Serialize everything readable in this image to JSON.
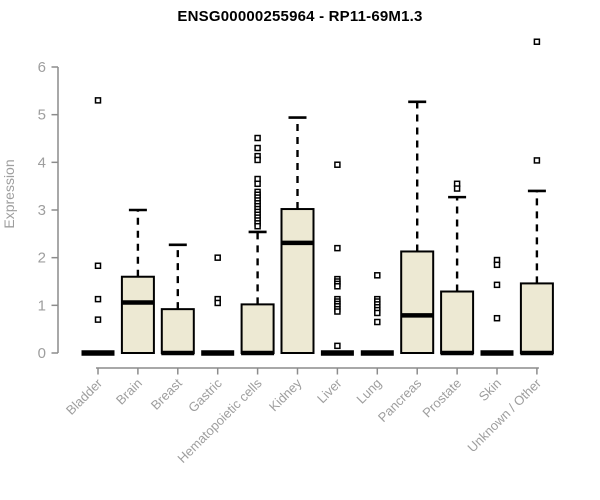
{
  "window": {
    "title": "ENSG00000255964 - RP11-69M1.3"
  },
  "chart_data": {
    "type": "boxplot",
    "title": "ENSG00000255964 - RP11-69M1.3",
    "xlabel": "",
    "ylabel": "Expression",
    "ylim": [
      0,
      6
    ],
    "yticks": [
      0,
      1,
      2,
      3,
      4,
      5,
      6
    ],
    "grid": false,
    "legend": "none",
    "colors": {
      "box_fill": "#EDE9D3",
      "box_stroke": "#000000",
      "median": "#000000",
      "whisker": "#000000",
      "outlier_stroke": "#000000",
      "outlier_fill": "#ffffff",
      "axis": "#8C8C8C",
      "tick_label": "#9E9E9E",
      "title": "#000000"
    },
    "categories": [
      "Bladder",
      "Brain",
      "Breast",
      "Gastric",
      "Hematopoietic cells",
      "Kidney",
      "Liver",
      "Lung",
      "Pancreas",
      "Prostate",
      "Skin",
      "Unknown / Other"
    ],
    "series": [
      {
        "category": "Bladder",
        "q1": 0,
        "median": 0,
        "q3": 0,
        "whisker_low": 0,
        "whisker_high": 0,
        "outliers": [
          5.3,
          1.83,
          1.13,
          0.7
        ]
      },
      {
        "category": "Brain",
        "q1": 0,
        "median": 1.06,
        "q3": 1.6,
        "whisker_low": 0,
        "whisker_high": 3.0,
        "outliers": []
      },
      {
        "category": "Breast",
        "q1": 0,
        "median": 0,
        "q3": 0.92,
        "whisker_low": 0,
        "whisker_high": 2.27,
        "outliers": []
      },
      {
        "category": "Gastric",
        "q1": 0,
        "median": 0,
        "q3": 0,
        "whisker_low": 0,
        "whisker_high": 0,
        "outliers": [
          2.0,
          1.13,
          1.05
        ]
      },
      {
        "category": "Hematopoietic cells",
        "q1": 0,
        "median": 0,
        "q3": 1.02,
        "whisker_low": 0,
        "whisker_high": 2.54,
        "outliers": [
          4.51,
          4.3,
          4.13,
          4.05,
          3.65,
          3.55,
          3.38,
          3.32,
          3.26,
          3.2,
          3.14,
          3.08,
          3.02,
          2.96,
          2.9,
          2.84,
          2.78,
          2.72,
          2.66
        ]
      },
      {
        "category": "Kidney",
        "q1": 0,
        "median": 2.31,
        "q3": 3.02,
        "whisker_low": 0,
        "whisker_high": 4.94,
        "outliers": []
      },
      {
        "category": "Liver",
        "q1": 0,
        "median": 0,
        "q3": 0,
        "whisker_low": 0,
        "whisker_high": 0,
        "outliers": [
          3.95,
          2.2,
          1.55,
          1.5,
          1.45,
          1.4,
          1.13,
          1.08,
          1.03,
          0.98,
          0.92,
          0.87,
          0.15
        ]
      },
      {
        "category": "Lung",
        "q1": 0,
        "median": 0,
        "q3": 0,
        "whisker_low": 0,
        "whisker_high": 0,
        "outliers": [
          1.63,
          1.13,
          1.08,
          1.02,
          0.96,
          0.9,
          0.84,
          0.65
        ]
      },
      {
        "category": "Pancreas",
        "q1": 0,
        "median": 0.79,
        "q3": 2.13,
        "whisker_low": 0,
        "whisker_high": 5.27,
        "outliers": []
      },
      {
        "category": "Prostate",
        "q1": 0,
        "median": 0,
        "q3": 1.29,
        "whisker_low": 0,
        "whisker_high": 3.27,
        "outliers": [
          3.55,
          3.45
        ]
      },
      {
        "category": "Skin",
        "q1": 0,
        "median": 0,
        "q3": 0,
        "whisker_low": 0,
        "whisker_high": 0,
        "outliers": [
          1.95,
          1.85,
          1.43,
          0.73
        ]
      },
      {
        "category": "Unknown / Other",
        "q1": 0,
        "median": 0,
        "q3": 1.46,
        "whisker_low": 0,
        "whisker_high": 3.4,
        "outliers": [
          6.53,
          4.04
        ]
      }
    ]
  }
}
